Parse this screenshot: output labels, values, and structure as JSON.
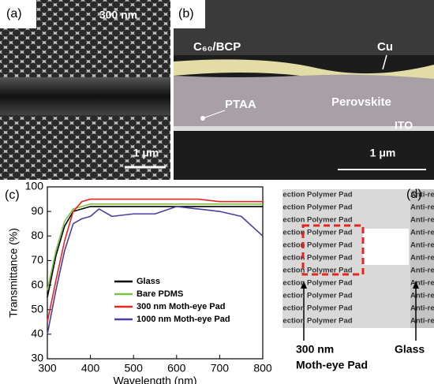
{
  "panel_a": {
    "label": "(a)",
    "scale_top": "300 nm",
    "scale_bottom": "1 μm"
  },
  "panel_b": {
    "label": "(b)",
    "layers": [
      "C₆₀/BCP",
      "Cu",
      "PTAA",
      "Perovskite",
      "ITO"
    ],
    "scale": "1 μm"
  },
  "panel_d": {
    "label": "(d)",
    "photo_text": "Anti-reflection Polymer Pad",
    "left_label": [
      "300 nm",
      "Moth-eye Pad"
    ],
    "right_label": "Glass"
  },
  "chart_data": {
    "type": "line",
    "panel_label": "(c)",
    "x_label": "Wavelength (nm)",
    "y_label": "Transmittance (%)",
    "x": [
      300,
      320,
      340,
      360,
      380,
      400,
      420,
      450,
      500,
      550,
      600,
      650,
      700,
      750,
      800
    ],
    "series": [
      {
        "name": "Glass",
        "color": "#000000",
        "values": [
          55,
          72,
          84,
          90,
          91,
          92,
          92,
          92,
          92,
          92,
          92,
          92,
          92,
          92,
          92
        ]
      },
      {
        "name": "Bare PDMS",
        "color": "#7dc242",
        "values": [
          58,
          74,
          86,
          91,
          92,
          93,
          93,
          93,
          93,
          93,
          93,
          93,
          93,
          93,
          93
        ]
      },
      {
        "name": "300 nm Moth-eye Pad",
        "color": "#e8261f",
        "values": [
          45,
          62,
          78,
          90,
          94,
          95,
          95,
          95,
          95,
          95,
          95,
          95,
          94,
          94,
          94
        ]
      },
      {
        "name": "1000 nm Moth-eye Pad",
        "color": "#4a3ea0",
        "values": [
          40,
          58,
          74,
          85,
          87,
          88,
          91,
          88,
          89,
          89,
          92,
          91,
          90,
          88,
          80
        ]
      }
    ],
    "xlim": [
      300,
      800
    ],
    "xticks": [
      300,
      400,
      500,
      600,
      700,
      800
    ],
    "ylim": [
      30,
      100
    ],
    "yticks": [
      30,
      40,
      50,
      60,
      70,
      80,
      90,
      100
    ]
  }
}
